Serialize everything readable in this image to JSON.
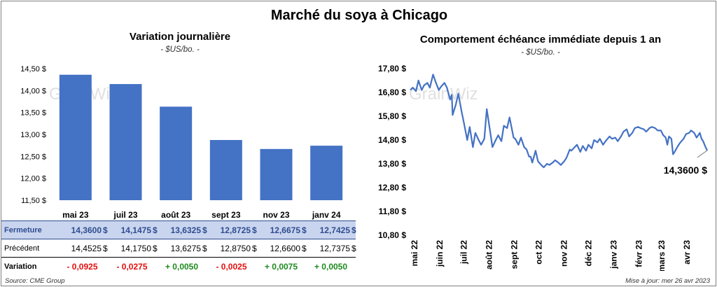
{
  "title": "Marché du soya à Chicago",
  "watermark": "GrainWiz",
  "left_panel": {
    "title": "Variation  journalière",
    "subtitle": "- $US/bo. -"
  },
  "right_panel": {
    "title": "Comportement  échéance immédiate depuis 1 an",
    "subtitle": "- $US/bo. -",
    "last_value_label": "14,3600 $"
  },
  "table": {
    "rows": [
      {
        "label": "Fermeture",
        "values": [
          "14,3600",
          "14,1475",
          "13,6325",
          "12,8725",
          "12,6675",
          "12,7425"
        ],
        "unit": "$"
      },
      {
        "label": "Précédent",
        "values": [
          "14,4525",
          "14,1750",
          "13,6275",
          "12,8750",
          "12,6600",
          "12,7375"
        ],
        "unit": "$"
      },
      {
        "label": "Variation",
        "values": [
          "- 0,0925",
          "- 0,0275",
          "+ 0,0050",
          "- 0,0025",
          "+ 0,0075",
          "+ 0,0050"
        ]
      }
    ]
  },
  "footer": {
    "source": "Source: CME Group",
    "updated": "Mise à jour: mer 26 avr 2023"
  },
  "colors": {
    "bar": "#4472c4",
    "line": "#4472c4",
    "header_bg": "#c9d4ef",
    "negative": "#e30d0d",
    "positive": "#1e8a1e"
  },
  "chart_data": [
    {
      "type": "bar",
      "title": "Variation  journalière",
      "subtitle": "- $US/bo. -",
      "categories": [
        "mai 23",
        "juil 23",
        "août 23",
        "sept 23",
        "nov 23",
        "janv 24"
      ],
      "values": [
        14.36,
        14.1475,
        13.6325,
        12.8725,
        12.6675,
        12.7425
      ],
      "ylim": [
        11.5,
        14.5
      ],
      "yticks": [
        11.5,
        12.0,
        12.5,
        13.0,
        13.5,
        14.0,
        14.5
      ],
      "ytick_labels": [
        "11,50 $",
        "12,00 $",
        "12,50 $",
        "13,00 $",
        "13,50 $",
        "14,00 $",
        "14,50 $"
      ],
      "grid": false
    },
    {
      "type": "line",
      "title": "Comportement  échéance immédiate depuis 1 an",
      "subtitle": "- $US/bo. -",
      "x_start": "2022-04-26",
      "x_end": "2023-04-26",
      "xtick_labels": [
        "mai 22",
        "juin 22",
        "juil 22",
        "août 22",
        "sept 22",
        "oct 22",
        "nov 22",
        "déc 22",
        "janv 23",
        "févr 23",
        "mars 23",
        "avr 23"
      ],
      "xtick_dates": [
        "2022-05-01",
        "2022-06-01",
        "2022-07-01",
        "2022-08-01",
        "2022-09-01",
        "2022-10-01",
        "2022-11-01",
        "2022-12-01",
        "2023-01-01",
        "2023-02-01",
        "2023-03-01",
        "2023-04-01"
      ],
      "ylim": [
        10.8,
        17.8
      ],
      "yticks": [
        10.8,
        11.8,
        12.8,
        13.8,
        14.8,
        15.8,
        16.8,
        17.8
      ],
      "ytick_labels": [
        "10,80 $",
        "11,80 $",
        "12,80 $",
        "13,80 $",
        "14,80 $",
        "15,80 $",
        "16,80 $",
        "17,80 $"
      ],
      "series": [
        {
          "values": [
            [
              "2022-04-26",
              16.9
            ],
            [
              "2022-04-29",
              17.0
            ],
            [
              "2022-05-03",
              16.85
            ],
            [
              "2022-05-06",
              17.3
            ],
            [
              "2022-05-10",
              16.9
            ],
            [
              "2022-05-13",
              17.1
            ],
            [
              "2022-05-17",
              17.2
            ],
            [
              "2022-05-20",
              17.0
            ],
            [
              "2022-05-24",
              17.55
            ],
            [
              "2022-05-27",
              17.25
            ],
            [
              "2022-05-31",
              16.9
            ],
            [
              "2022-06-03",
              17.05
            ],
            [
              "2022-06-07",
              17.2
            ],
            [
              "2022-06-10",
              17.0
            ],
            [
              "2022-06-14",
              16.5
            ],
            [
              "2022-06-16",
              16.7
            ],
            [
              "2022-06-17",
              15.85
            ],
            [
              "2022-06-21",
              16.3
            ],
            [
              "2022-06-24",
              16.75
            ],
            [
              "2022-06-28",
              16.0
            ],
            [
              "2022-07-01",
              15.5
            ],
            [
              "2022-07-05",
              14.8
            ],
            [
              "2022-07-08",
              15.35
            ],
            [
              "2022-07-12",
              14.5
            ],
            [
              "2022-07-15",
              15.1
            ],
            [
              "2022-07-19",
              14.8
            ],
            [
              "2022-07-22",
              14.6
            ],
            [
              "2022-07-26",
              14.85
            ],
            [
              "2022-07-29",
              16.1
            ],
            [
              "2022-08-02",
              15.2
            ],
            [
              "2022-08-05",
              14.5
            ],
            [
              "2022-08-09",
              14.8
            ],
            [
              "2022-08-12",
              15.0
            ],
            [
              "2022-08-16",
              14.75
            ],
            [
              "2022-08-19",
              15.4
            ],
            [
              "2022-08-23",
              15.3
            ],
            [
              "2022-08-26",
              15.75
            ],
            [
              "2022-08-31",
              14.9
            ],
            [
              "2022-09-02",
              14.85
            ],
            [
              "2022-09-06",
              14.6
            ],
            [
              "2022-09-09",
              14.9
            ],
            [
              "2022-09-13",
              14.5
            ],
            [
              "2022-09-16",
              14.4
            ],
            [
              "2022-09-19",
              14.1
            ],
            [
              "2022-09-21",
              14.1
            ],
            [
              "2022-09-23",
              13.85
            ],
            [
              "2022-09-27",
              14.35
            ],
            [
              "2022-09-30",
              13.9
            ],
            [
              "2022-10-04",
              13.75
            ],
            [
              "2022-10-07",
              13.65
            ],
            [
              "2022-10-11",
              13.8
            ],
            [
              "2022-10-14",
              13.75
            ],
            [
              "2022-10-18",
              13.85
            ],
            [
              "2022-10-21",
              13.95
            ],
            [
              "2022-10-25",
              13.85
            ],
            [
              "2022-10-28",
              13.75
            ],
            [
              "2022-11-01",
              13.9
            ],
            [
              "2022-11-04",
              14.05
            ],
            [
              "2022-11-08",
              14.4
            ],
            [
              "2022-11-10",
              14.35
            ],
            [
              "2022-11-14",
              14.5
            ],
            [
              "2022-11-17",
              14.6
            ],
            [
              "2022-11-21",
              14.3
            ],
            [
              "2022-11-24",
              14.55
            ],
            [
              "2022-11-28",
              14.35
            ],
            [
              "2022-12-01",
              14.6
            ],
            [
              "2022-12-05",
              14.45
            ],
            [
              "2022-12-08",
              14.8
            ],
            [
              "2022-12-12",
              14.7
            ],
            [
              "2022-12-15",
              14.85
            ],
            [
              "2022-12-19",
              14.6
            ],
            [
              "2022-12-22",
              14.75
            ],
            [
              "2022-12-27",
              14.95
            ],
            [
              "2022-12-30",
              14.85
            ],
            [
              "2023-01-03",
              14.9
            ],
            [
              "2023-01-06",
              14.75
            ],
            [
              "2023-01-10",
              14.95
            ],
            [
              "2023-01-13",
              15.15
            ],
            [
              "2023-01-17",
              15.25
            ],
            [
              "2023-01-20",
              14.95
            ],
            [
              "2023-01-24",
              15.1
            ],
            [
              "2023-01-27",
              15.3
            ],
            [
              "2023-01-31",
              15.35
            ],
            [
              "2023-02-03",
              15.3
            ],
            [
              "2023-02-07",
              15.25
            ],
            [
              "2023-02-10",
              15.15
            ],
            [
              "2023-02-14",
              15.3
            ],
            [
              "2023-02-17",
              15.35
            ],
            [
              "2023-02-21",
              15.3
            ],
            [
              "2023-02-24",
              15.2
            ],
            [
              "2023-02-28",
              15.2
            ],
            [
              "2023-03-03",
              15.0
            ],
            [
              "2023-03-06",
              14.9
            ],
            [
              "2023-03-08",
              14.6
            ],
            [
              "2023-03-10",
              14.95
            ],
            [
              "2023-03-13",
              14.85
            ],
            [
              "2023-03-15",
              14.2
            ],
            [
              "2023-03-17",
              14.3
            ],
            [
              "2023-03-21",
              14.55
            ],
            [
              "2023-03-24",
              14.7
            ],
            [
              "2023-03-28",
              14.85
            ],
            [
              "2023-03-31",
              15.05
            ],
            [
              "2023-04-04",
              15.1
            ],
            [
              "2023-04-06",
              15.2
            ],
            [
              "2023-04-10",
              15.1
            ],
            [
              "2023-04-13",
              14.9
            ],
            [
              "2023-04-17",
              15.1
            ],
            [
              "2023-04-19",
              14.85
            ],
            [
              "2023-04-21",
              14.75
            ],
            [
              "2023-04-24",
              14.5
            ],
            [
              "2023-04-26",
              14.36
            ]
          ]
        }
      ],
      "annotations": [
        {
          "x": "2023-04-26",
          "y": 14.36,
          "text": "14,3600 $"
        }
      ],
      "grid": false
    }
  ]
}
